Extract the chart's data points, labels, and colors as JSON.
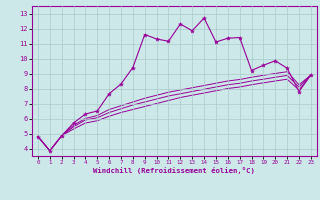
{
  "xlabel": "Windchill (Refroidissement éolien,°C)",
  "bg_color": "#cce8e8",
  "grid_color": "#aacccc",
  "line_color": "#990099",
  "xlim": [
    -0.5,
    23.5
  ],
  "ylim": [
    3.5,
    13.5
  ],
  "xticks": [
    0,
    1,
    2,
    3,
    4,
    5,
    6,
    7,
    8,
    9,
    10,
    11,
    12,
    13,
    14,
    15,
    16,
    17,
    18,
    19,
    20,
    21,
    22,
    23
  ],
  "yticks": [
    4,
    5,
    6,
    7,
    8,
    9,
    10,
    11,
    12,
    13
  ],
  "line1_x": [
    0,
    1,
    2,
    3,
    4,
    5,
    6,
    7,
    8,
    9,
    10,
    11,
    12,
    13,
    14,
    15,
    16,
    17,
    18,
    19,
    20,
    21,
    22,
    23
  ],
  "line1_y": [
    4.8,
    3.85,
    4.85,
    5.7,
    6.3,
    6.5,
    7.65,
    8.3,
    9.4,
    11.6,
    11.3,
    11.15,
    12.3,
    11.85,
    12.7,
    11.1,
    11.35,
    11.4,
    9.2,
    9.55,
    9.85,
    9.35,
    7.8,
    8.9
  ],
  "line2_y": [
    4.8,
    3.85,
    4.85,
    5.3,
    5.7,
    5.85,
    6.15,
    6.4,
    6.6,
    6.8,
    7.0,
    7.2,
    7.4,
    7.55,
    7.7,
    7.85,
    8.0,
    8.1,
    8.25,
    8.38,
    8.5,
    8.62,
    7.9,
    8.9
  ],
  "line3_y": [
    4.8,
    3.85,
    4.85,
    5.45,
    5.9,
    6.05,
    6.4,
    6.65,
    6.9,
    7.1,
    7.3,
    7.5,
    7.65,
    7.8,
    7.95,
    8.1,
    8.25,
    8.35,
    8.5,
    8.62,
    8.75,
    8.87,
    8.1,
    8.9
  ],
  "line4_y": [
    4.8,
    3.85,
    4.85,
    5.55,
    6.0,
    6.2,
    6.6,
    6.85,
    7.1,
    7.35,
    7.55,
    7.75,
    7.9,
    8.05,
    8.2,
    8.35,
    8.5,
    8.6,
    8.75,
    8.88,
    9.0,
    9.12,
    8.25,
    8.9
  ]
}
